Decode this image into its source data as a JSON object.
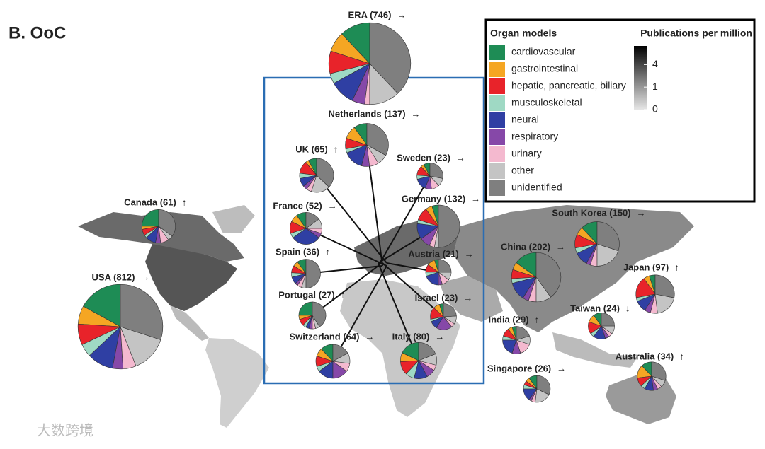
{
  "chart_data": {
    "type": "pie-map",
    "title": "B. OoC",
    "watermark": "大数跨境",
    "legend": {
      "title": "Organ models",
      "names": [
        "cardiovascular",
        "gastrointestinal",
        "hepatic, pancreatic, biliary",
        "musculoskeletal",
        "neural",
        "respiratory",
        "urinary",
        "other",
        "unidentified"
      ],
      "colors": [
        "#1e8c55",
        "#f5a623",
        "#e8232a",
        "#9fd9c4",
        "#2f3fa3",
        "#8648a8",
        "#f4b9cf",
        "#c4c4c4",
        "#7f7f7f"
      ]
    },
    "colorbar": {
      "title": "Publications per million",
      "scale": "sqrt",
      "lim": [
        0,
        8
      ],
      "ticks": [
        0,
        1,
        4
      ]
    },
    "pies": [
      {
        "label": "ERA (746)",
        "count": 746,
        "trend": "→",
        "values": [
          12,
          8,
          9,
          4,
          10,
          5,
          2,
          12,
          38
        ]
      },
      {
        "label": "Netherlands (137)",
        "count": 137,
        "trend": "→",
        "values": [
          10,
          10,
          8,
          3,
          15,
          6,
          7,
          8,
          33
        ]
      },
      {
        "label": "UK (65)",
        "count": 65,
        "trend": "↑",
        "values": [
          8,
          3,
          12,
          5,
          8,
          4,
          5,
          18,
          37
        ]
      },
      {
        "label": "Sweden (23)",
        "count": 23,
        "trend": "→",
        "values": [
          8,
          4,
          12,
          5,
          15,
          8,
          10,
          10,
          28
        ]
      },
      {
        "label": "Canada (61)",
        "count": 61,
        "trend": "↑",
        "values": [
          25,
          3,
          6,
          3,
          10,
          5,
          8,
          5,
          35
        ]
      },
      {
        "label": "France (52)",
        "count": 52,
        "trend": "→",
        "values": [
          10,
          8,
          12,
          5,
          30,
          5,
          5,
          10,
          15
        ]
      },
      {
        "label": "Germany (132)",
        "count": 132,
        "trend": "→",
        "values": [
          5,
          5,
          10,
          3,
          12,
          8,
          4,
          3,
          50
        ]
      },
      {
        "label": "Spain (36)",
        "count": 36,
        "trend": "↑",
        "values": [
          10,
          6,
          8,
          5,
          8,
          3,
          5,
          5,
          50
        ]
      },
      {
        "label": "Austria (21)",
        "count": 21,
        "trend": "→",
        "values": [
          5,
          10,
          10,
          5,
          20,
          5,
          10,
          10,
          25
        ]
      },
      {
        "label": "Portugal (27)",
        "count": 27,
        "trend": "↑",
        "values": [
          25,
          5,
          8,
          4,
          4,
          4,
          4,
          5,
          41
        ]
      },
      {
        "label": "Israel (23)",
        "count": 23,
        "trend": "→",
        "values": [
          5,
          8,
          15,
          3,
          10,
          20,
          5,
          10,
          24
        ]
      },
      {
        "label": "Switzerland (64)",
        "count": 64,
        "trend": "→",
        "values": [
          12,
          8,
          10,
          5,
          15,
          15,
          8,
          10,
          17
        ]
      },
      {
        "label": "Italy (80)",
        "count": 80,
        "trend": "→",
        "values": [
          18,
          8,
          12,
          8,
          12,
          8,
          5,
          10,
          19
        ]
      },
      {
        "label": "USA (812)",
        "count": 812,
        "trend": "→",
        "values": [
          17,
          7,
          8,
          5,
          10,
          4,
          5,
          14,
          30
        ]
      },
      {
        "label": "China (202)",
        "count": 202,
        "trend": "→",
        "values": [
          15,
          5,
          6,
          3,
          12,
          4,
          5,
          10,
          40
        ]
      },
      {
        "label": "South Korea (150)",
        "count": 150,
        "trend": "→",
        "values": [
          12,
          6,
          10,
          4,
          10,
          3,
          5,
          20,
          30
        ]
      },
      {
        "label": "Japan (97)",
        "count": 97,
        "trend": "↑",
        "values": [
          5,
          5,
          18,
          3,
          10,
          5,
          6,
          20,
          28
        ]
      },
      {
        "label": "Taiwan (24)",
        "count": 24,
        "trend": "↓",
        "values": [
          10,
          10,
          15,
          5,
          15,
          5,
          5,
          10,
          25
        ]
      },
      {
        "label": "India (29)",
        "count": 29,
        "trend": "↑",
        "values": [
          5,
          5,
          10,
          5,
          20,
          10,
          15,
          10,
          20
        ]
      },
      {
        "label": "Singapore (26)",
        "count": 26,
        "trend": "→",
        "values": [
          10,
          5,
          5,
          5,
          15,
          3,
          5,
          20,
          32
        ]
      },
      {
        "label": "Australia (34)",
        "count": 34,
        "trend": "↑",
        "values": [
          12,
          15,
          10,
          5,
          10,
          5,
          5,
          8,
          30
        ]
      }
    ]
  }
}
